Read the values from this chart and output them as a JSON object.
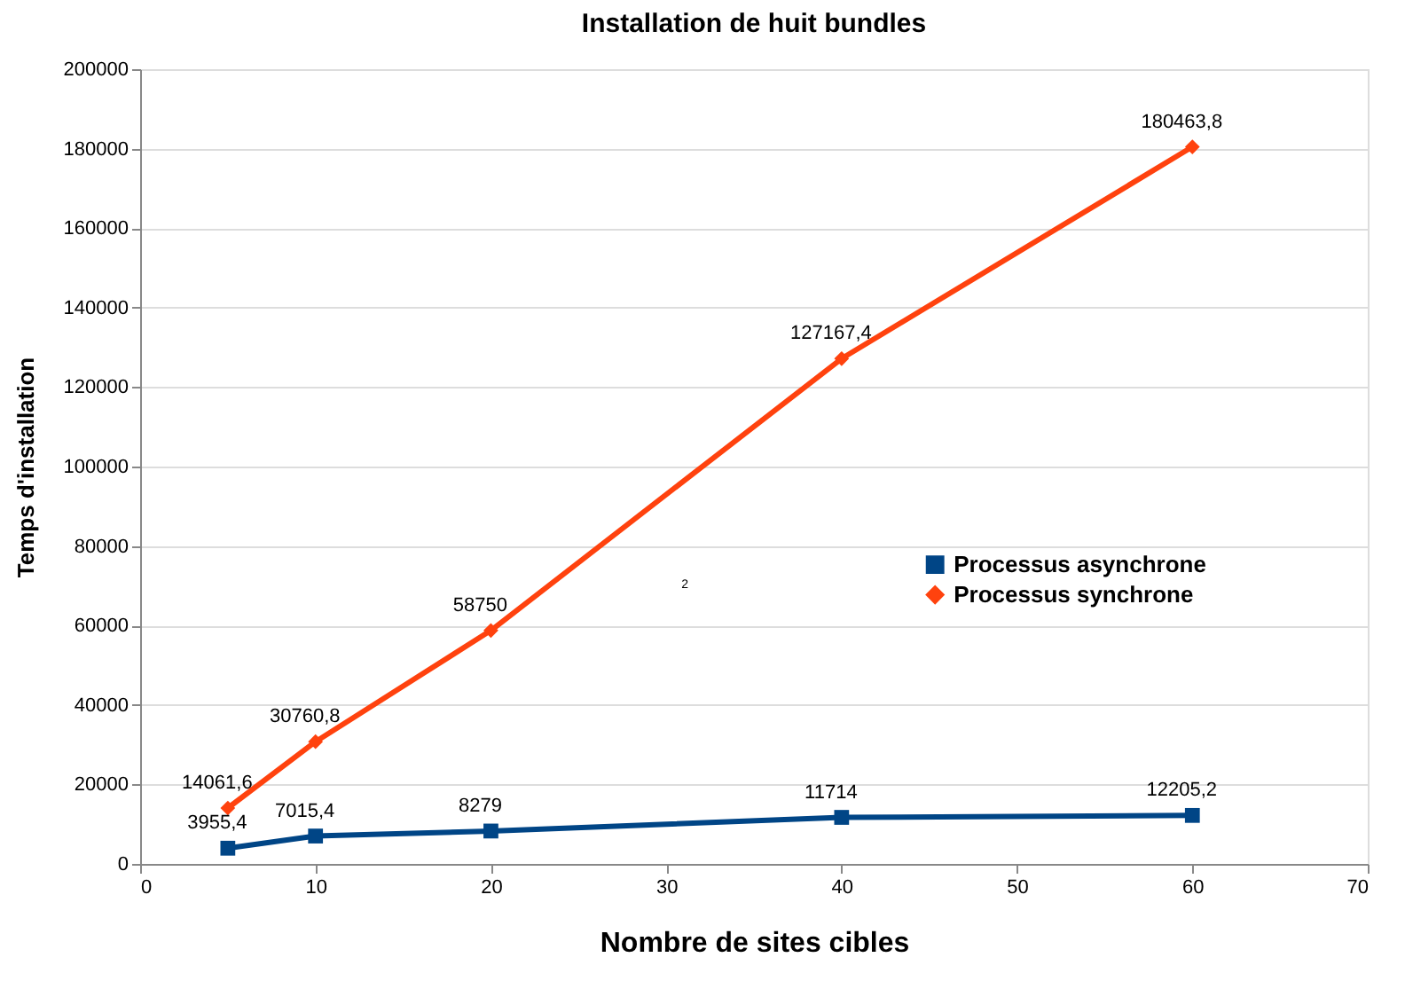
{
  "chart_data": {
    "type": "line",
    "title": "Installation de huit bundles",
    "xlabel": "Nombre de sites cibles",
    "ylabel": "Temps d'installation",
    "x": [
      5,
      10,
      20,
      40,
      60
    ],
    "xlim": [
      0,
      70
    ],
    "xticks": [
      0,
      10,
      20,
      30,
      40,
      50,
      60,
      70
    ],
    "ylim": [
      0,
      200000
    ],
    "yticks": [
      0,
      20000,
      40000,
      60000,
      80000,
      100000,
      120000,
      140000,
      160000,
      180000,
      200000
    ],
    "grid": "y",
    "legend": "right",
    "line_style": "solid",
    "series": [
      {
        "name": "Processus asynchrone",
        "color": "#004586",
        "marker": "square",
        "values": [
          3955.4,
          7015.4,
          8279,
          11714,
          12205.2
        ],
        "value_labels": [
          "3955,4",
          "7015,4",
          "8279",
          "11714",
          "12205,2"
        ]
      },
      {
        "name": "Processus synchrone",
        "color": "#ff420e",
        "marker": "diamond",
        "values": [
          14061.6,
          30760.8,
          58750,
          127167.4,
          180463.8
        ],
        "value_labels": [
          "14061,6",
          "30760,8",
          "58750",
          "127167,4",
          "180463,8"
        ]
      }
    ],
    "annotations": [
      "2"
    ]
  }
}
